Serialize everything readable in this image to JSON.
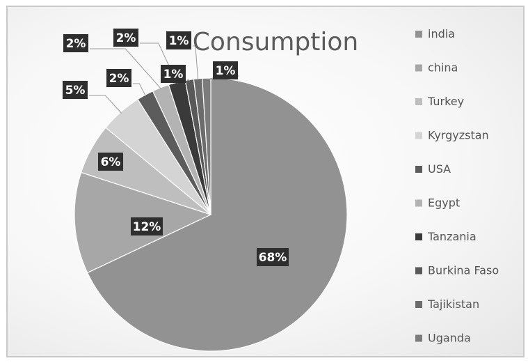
{
  "chart_data": {
    "type": "pie",
    "title": "Consumption",
    "legend_position": "right",
    "categories": [
      "india",
      "china",
      "Turkey",
      "Kyrgyzstan",
      "USA",
      "Egypt",
      "Tanzania",
      "Burkina Faso",
      "Tajikistan",
      "Uganda"
    ],
    "values": [
      68,
      12,
      6,
      5,
      2,
      2,
      2,
      1,
      1,
      1
    ],
    "labels": [
      "68%",
      "12%",
      "6%",
      "5%",
      "2%",
      "2%",
      "2%",
      "1%",
      "1%",
      "1%"
    ],
    "colors": [
      "#929292",
      "#a7a7a7",
      "#bebebe",
      "#d4d4d4",
      "#5c5c5c",
      "#b3b3b3",
      "#3a3a3a",
      "#595959",
      "#6c6c6c",
      "#7c7c7c"
    ]
  }
}
